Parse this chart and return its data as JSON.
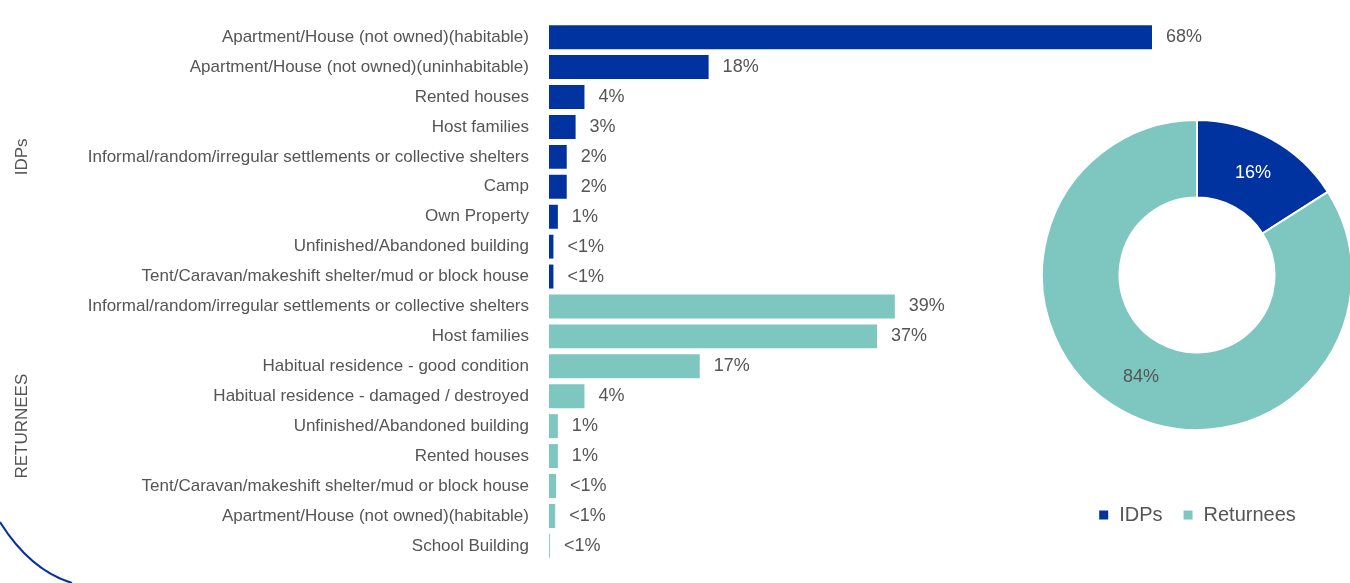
{
  "chart_data": [
    {
      "type": "bar",
      "orientation": "horizontal",
      "categories": [
        "Apartment/House (not owned)(habitable)",
        "Apartment/House (not owned)(uninhabitable)",
        "Rented houses",
        "Host families",
        "Informal/random/irregular settlements or collective shelters",
        "Camp",
        "Own Property",
        "Unfinished/Abandoned building",
        "Tent/Caravan/makeshift shelter/mud or block house",
        "Informal/random/irregular settlements or collective shelters",
        "Host families",
        "Habitual residence - good condition",
        "Habitual residence - damaged / destroyed",
        "Unfinished/Abandoned building",
        "Rented houses",
        "Tent/Caravan/makeshift shelter/mud or block house",
        "Apartment/House (not owned)(habitable)",
        "School Building"
      ],
      "values": [
        68,
        18,
        4,
        3,
        2,
        2,
        1,
        0.5,
        0.5,
        39,
        37,
        17,
        4,
        1,
        1,
        0.8,
        0.7,
        0.1
      ],
      "value_labels": [
        "68%",
        "18%",
        "4%",
        "3%",
        "2%",
        "2%",
        "1%",
        "<1%",
        "<1%",
        "39%",
        "37%",
        "17%",
        "4%",
        "1%",
        "1%",
        "<1%",
        "<1%",
        "<1%"
      ],
      "colors": [
        "#0033a0",
        "#0033a0",
        "#0033a0",
        "#0033a0",
        "#0033a0",
        "#0033a0",
        "#0033a0",
        "#0033a0",
        "#0033a0",
        "#7dc7c0",
        "#7dc7c0",
        "#7dc7c0",
        "#7dc7c0",
        "#7dc7c0",
        "#7dc7c0",
        "#7dc7c0",
        "#7dc7c0",
        "#7dc7c0"
      ],
      "xlim": [
        0,
        68
      ],
      "tick_labels": "y",
      "legend": false,
      "annotations": [
        "IDPs",
        "RETURNEES"
      ]
    },
    {
      "type": "donut",
      "categories": [
        "IDPs",
        "Returnees"
      ],
      "values": [
        16,
        84
      ],
      "value_labels": [
        "16%",
        "84%"
      ],
      "colors": [
        "#0033a0",
        "#7dc7c0"
      ],
      "legend": "bottom"
    }
  ]
}
